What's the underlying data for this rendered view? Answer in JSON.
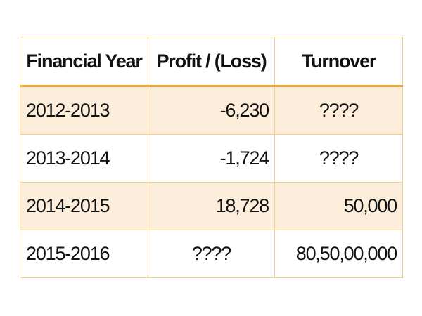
{
  "table": {
    "header": [
      "Financial Year",
      "Profit / (Loss)",
      "Turnover"
    ],
    "rows": [
      [
        "2012-2013",
        "-6,230",
        "????"
      ],
      [
        "2013-2014",
        "-1,724",
        "????"
      ],
      [
        "2014-2015",
        "18,728",
        "50,000"
      ],
      [
        "2015-2016",
        "????",
        "80,50,00,000"
      ]
    ]
  }
}
